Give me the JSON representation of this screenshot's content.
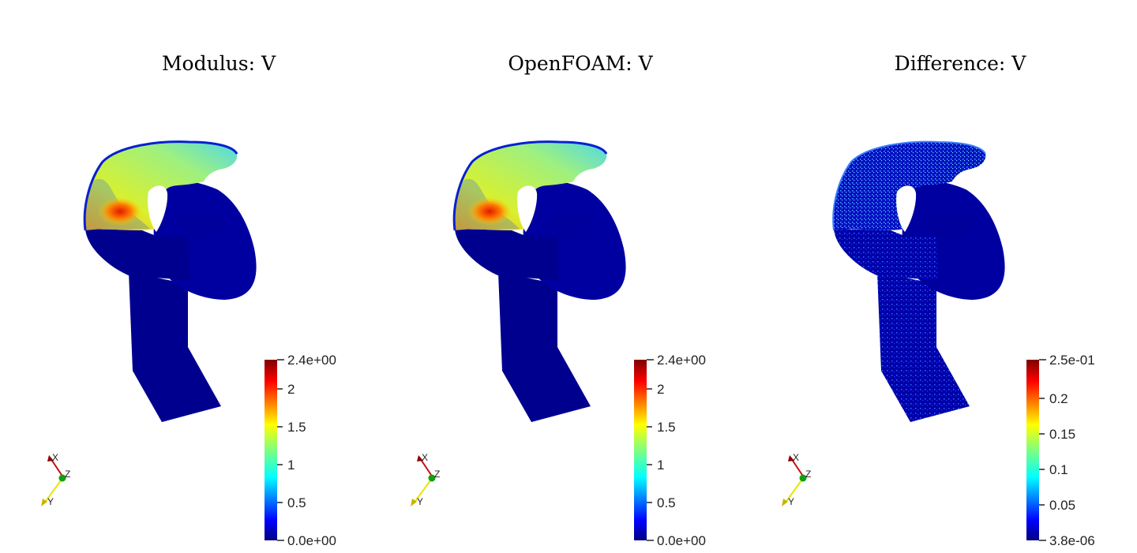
{
  "panels": [
    {
      "title": "Modulus: V",
      "colorbar": {
        "ticks": [
          "2.4e+00",
          "2",
          "1.5",
          "1",
          "0.5",
          "0.0e+00"
        ]
      },
      "field": "velocity"
    },
    {
      "title": "OpenFOAM: V",
      "colorbar": {
        "ticks": [
          "2.4e+00",
          "2",
          "1.5",
          "1",
          "0.5",
          "0.0e+00"
        ]
      },
      "field": "velocity"
    },
    {
      "title": "Difference: V",
      "colorbar": {
        "ticks": [
          "2.5e-01",
          "0.2",
          "0.15",
          "0.1",
          "0.05",
          "3.8e-06"
        ]
      },
      "field": "difference"
    }
  ],
  "orientation_axes": {
    "x": "X",
    "y": "Y",
    "z": "Z"
  },
  "colors": {
    "background": "#ffffff",
    "mesh_dark_blue": "#00008c",
    "jet_top": "#7f0000",
    "jet_bottom": "#00007f"
  }
}
